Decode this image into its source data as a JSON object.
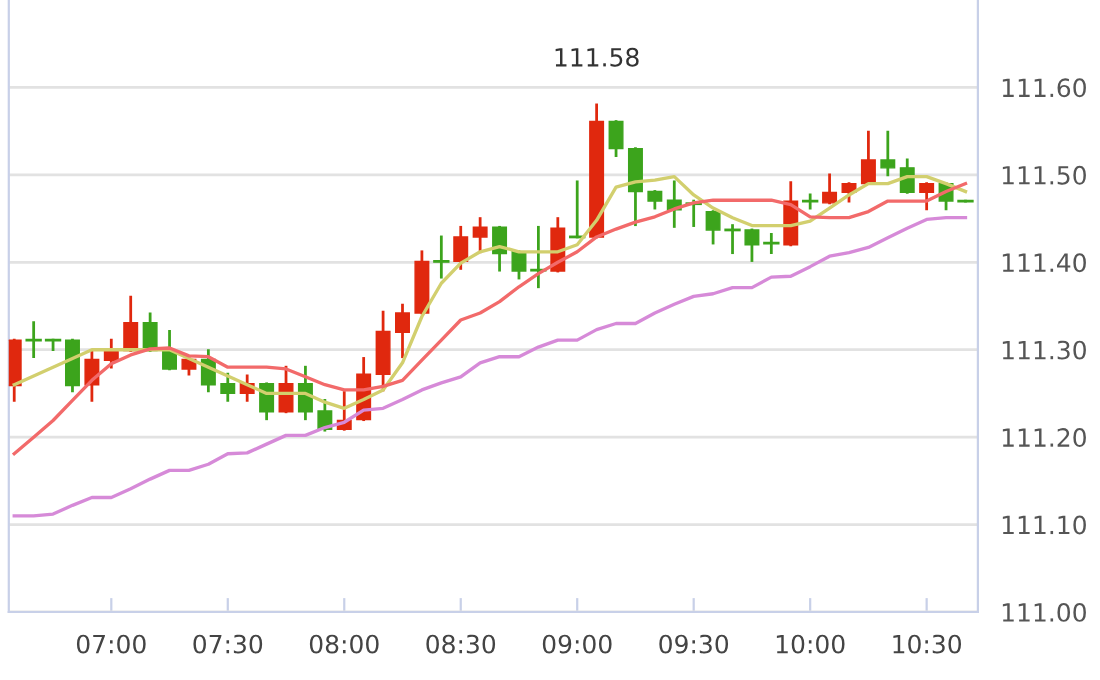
{
  "chart_data": {
    "type": "candlestick",
    "x": [
      6.5833,
      6.6667,
      6.75,
      6.8333,
      6.9167,
      7.0,
      7.0833,
      7.1667,
      7.25,
      7.3333,
      7.4167,
      7.5,
      7.5833,
      7.6667,
      7.75,
      7.8333,
      7.9167,
      8.0,
      8.0833,
      8.1667,
      8.25,
      8.3333,
      8.4167,
      8.5,
      8.5833,
      8.6667,
      8.75,
      8.8333,
      8.9167,
      9.0,
      9.0833,
      9.1667,
      9.25,
      9.3333,
      9.4167,
      9.5,
      9.5833,
      9.6667,
      9.75,
      9.8333,
      9.9167,
      10.0,
      10.0833,
      10.1667,
      10.25,
      10.3333,
      10.4167,
      10.5,
      10.5833,
      10.6667
    ],
    "ohlc": [
      [
        111.259,
        111.311,
        111.242,
        111.311
      ],
      [
        111.311,
        111.331,
        111.292,
        111.311
      ],
      [
        111.311,
        111.311,
        111.3,
        111.311
      ],
      [
        111.311,
        111.311,
        111.253,
        111.259
      ],
      [
        111.26,
        111.299,
        111.242,
        111.289
      ],
      [
        111.288,
        111.311,
        111.28,
        111.299
      ],
      [
        111.299,
        111.36,
        111.299,
        111.331
      ],
      [
        111.331,
        111.341,
        111.299,
        111.299
      ],
      [
        111.299,
        111.321,
        111.278,
        111.278
      ],
      [
        111.278,
        111.291,
        111.272,
        111.289
      ],
      [
        111.289,
        111.299,
        111.253,
        111.26
      ],
      [
        111.261,
        111.272,
        111.242,
        111.25
      ],
      [
        111.25,
        111.27,
        111.242,
        111.261
      ],
      [
        111.261,
        111.261,
        111.221,
        111.229
      ],
      [
        111.229,
        111.28,
        111.229,
        111.261
      ],
      [
        111.261,
        111.28,
        111.221,
        111.229
      ],
      [
        111.23,
        111.242,
        111.208,
        111.209
      ],
      [
        111.209,
        111.251,
        111.209,
        111.219
      ],
      [
        111.22,
        111.29,
        111.22,
        111.272
      ],
      [
        111.272,
        111.343,
        111.254,
        111.321
      ],
      [
        111.32,
        111.351,
        111.292,
        111.342
      ],
      [
        111.342,
        111.412,
        111.342,
        111.401
      ],
      [
        111.401,
        111.429,
        111.383,
        111.401
      ],
      [
        111.401,
        111.44,
        111.393,
        111.429
      ],
      [
        111.429,
        111.45,
        111.412,
        111.44
      ],
      [
        111.44,
        111.44,
        111.391,
        111.41
      ],
      [
        111.412,
        111.412,
        111.382,
        111.39
      ],
      [
        111.391,
        111.44,
        111.372,
        111.391
      ],
      [
        111.39,
        111.45,
        111.39,
        111.439
      ],
      [
        111.429,
        111.492,
        111.429,
        111.429
      ],
      [
        111.429,
        111.58,
        111.429,
        111.561
      ],
      [
        111.561,
        111.561,
        111.522,
        111.53
      ],
      [
        111.53,
        111.53,
        111.443,
        111.481
      ],
      [
        111.481,
        111.481,
        111.462,
        111.47
      ],
      [
        111.471,
        111.492,
        111.441,
        111.46
      ],
      [
        111.467,
        111.47,
        111.442,
        111.467
      ],
      [
        111.458,
        111.458,
        111.422,
        111.437
      ],
      [
        111.437,
        111.442,
        111.411,
        111.437
      ],
      [
        111.437,
        111.437,
        111.402,
        111.42
      ],
      [
        111.422,
        111.432,
        111.411,
        111.422
      ],
      [
        111.42,
        111.491,
        111.42,
        111.47
      ],
      [
        111.47,
        111.477,
        111.462,
        111.47
      ],
      [
        111.468,
        111.5,
        111.468,
        111.48
      ],
      [
        111.48,
        111.49,
        111.47,
        111.49
      ],
      [
        111.49,
        111.549,
        111.49,
        111.517
      ],
      [
        111.517,
        111.549,
        111.5,
        111.508
      ],
      [
        111.508,
        111.517,
        111.48,
        111.48
      ],
      [
        111.48,
        111.49,
        111.461,
        111.49
      ],
      [
        111.49,
        111.49,
        111.461,
        111.47
      ],
      [
        111.47,
        111.47,
        111.47,
        111.47
      ]
    ],
    "colors": [
      "#e0280e",
      "#3ca41c",
      "#3ca41c",
      "#3ca41c",
      "#e0280e",
      "#e0280e",
      "#e0280e",
      "#3ca41c",
      "#3ca41c",
      "#e0280e",
      "#3ca41c",
      "#3ca41c",
      "#e0280e",
      "#3ca41c",
      "#e0280e",
      "#3ca41c",
      "#3ca41c",
      "#e0280e",
      "#e0280e",
      "#e0280e",
      "#e0280e",
      "#e0280e",
      "#3ca41c",
      "#e0280e",
      "#e0280e",
      "#3ca41c",
      "#3ca41c",
      "#3ca41c",
      "#e0280e",
      "#3ca41c",
      "#e0280e",
      "#3ca41c",
      "#3ca41c",
      "#3ca41c",
      "#3ca41c",
      "#3ca41c",
      "#3ca41c",
      "#3ca41c",
      "#3ca41c",
      "#3ca41c",
      "#e0280e",
      "#3ca41c",
      "#e0280e",
      "#e0280e",
      "#e0280e",
      "#3ca41c",
      "#3ca41c",
      "#e0280e",
      "#3ca41c",
      "#3ca41c"
    ],
    "series": [
      {
        "type": "line",
        "color": "#d2cf6e",
        "values": [
          111.26,
          111.27,
          111.28,
          111.29,
          111.3,
          111.3,
          111.3,
          111.3,
          111.3,
          111.29,
          111.28,
          111.27,
          111.26,
          111.25,
          111.25,
          111.25,
          111.24,
          111.233,
          111.243,
          111.254,
          111.285,
          111.338,
          111.376,
          111.399,
          111.412,
          111.418,
          111.412,
          111.412,
          111.412,
          111.42,
          111.448,
          111.486,
          111.492,
          111.494,
          111.498,
          111.477,
          111.462,
          111.451,
          111.442,
          111.442,
          111.442,
          111.447,
          111.462,
          111.477,
          111.49,
          111.49,
          111.498,
          111.498,
          111.49,
          111.481
        ]
      },
      {
        "type": "line",
        "color": "#f26a6a",
        "values": [
          111.181,
          111.2,
          111.219,
          111.242,
          111.265,
          111.284,
          111.294,
          111.301,
          111.302,
          111.293,
          111.292,
          111.28,
          111.28,
          111.28,
          111.278,
          111.269,
          111.26,
          111.254,
          111.254,
          111.258,
          111.265,
          111.288,
          111.311,
          111.334,
          111.342,
          111.355,
          111.372,
          111.387,
          111.4,
          111.412,
          111.429,
          111.438,
          111.446,
          111.452,
          111.461,
          111.468,
          111.471,
          111.471,
          111.471,
          111.471,
          111.466,
          111.452,
          111.451,
          111.451,
          111.458,
          111.47,
          111.47,
          111.47,
          111.481,
          111.49
        ]
      },
      {
        "type": "line",
        "color": "#d68ad8",
        "values": [
          111.11,
          111.11,
          111.112,
          111.122,
          111.131,
          111.131,
          111.141,
          111.152,
          111.162,
          111.162,
          111.169,
          111.181,
          111.182,
          111.192,
          111.202,
          111.202,
          111.211,
          111.217,
          111.231,
          111.233,
          111.243,
          111.254,
          111.262,
          111.269,
          111.285,
          111.292,
          111.292,
          111.303,
          111.311,
          111.311,
          111.323,
          111.33,
          111.33,
          111.342,
          111.352,
          111.361,
          111.364,
          111.371,
          111.371,
          111.383,
          111.384,
          111.395,
          111.407,
          111.411,
          111.417,
          111.428,
          111.439,
          111.449,
          111.451,
          111.451
        ]
      }
    ],
    "xlim": [
      6.56,
      10.72
    ],
    "xticks": [
      {
        "value": 7,
        "label": "07:00"
      },
      {
        "value": 7.5,
        "label": "07:30"
      },
      {
        "value": 8,
        "label": "08:00"
      },
      {
        "value": 8.5,
        "label": "08:30"
      },
      {
        "value": 9,
        "label": "09:00"
      },
      {
        "value": 9.5,
        "label": "09:30"
      },
      {
        "value": 10,
        "label": "10:00"
      },
      {
        "value": 10.5,
        "label": "10:30"
      }
    ],
    "ylim": [
      111.0,
      111.7
    ],
    "yticks": [
      {
        "value": 111.0,
        "label": "111.00"
      },
      {
        "value": 111.1,
        "label": "111.10"
      },
      {
        "value": 111.2,
        "label": "111.20"
      },
      {
        "value": 111.3,
        "label": "111.30"
      },
      {
        "value": 111.4,
        "label": "111.40"
      },
      {
        "value": 111.5,
        "label": "111.50"
      },
      {
        "value": 111.6,
        "label": "111.60"
      }
    ],
    "grid": "y",
    "annotations": [
      {
        "text": "111.58",
        "x": 9.0833,
        "y": 111.58
      }
    ]
  }
}
